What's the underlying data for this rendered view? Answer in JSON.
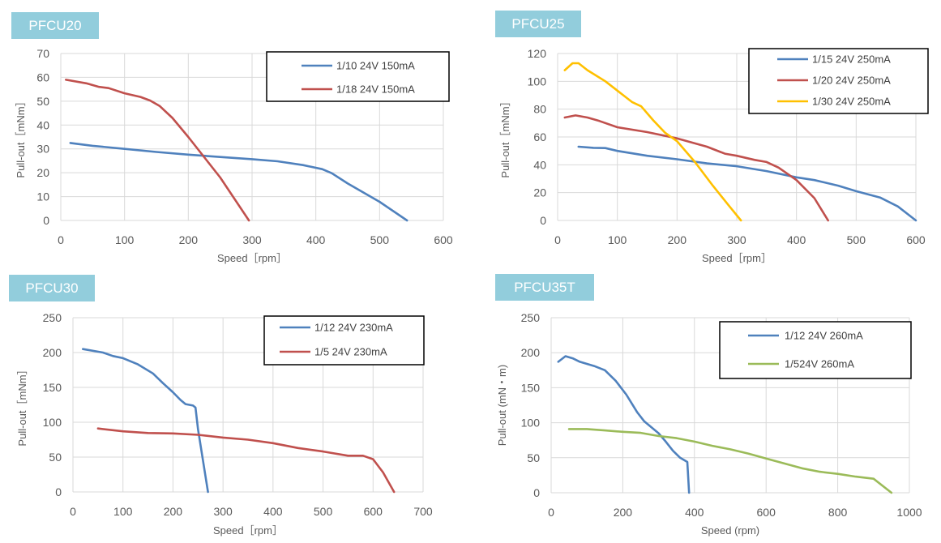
{
  "chart_data": [
    {
      "type": "line",
      "title": "PFCU20",
      "xlabel": "Speed［rpm］",
      "ylabel": "Pull-out［mNm］",
      "xlim": [
        0,
        600
      ],
      "ylim": [
        0,
        70
      ],
      "xticks": [
        0,
        100,
        200,
        300,
        400,
        500,
        600
      ],
      "yticks": [
        0,
        10,
        20,
        30,
        40,
        50,
        60,
        70
      ],
      "grid": true,
      "legend_position": "top-right",
      "series": [
        {
          "name": "1/10 24V 150mA",
          "color": "#4f81bd",
          "points": [
            [
              15,
              32.5
            ],
            [
              50,
              31.3
            ],
            [
              100,
              30
            ],
            [
              150,
              28.7
            ],
            [
              200,
              27.6
            ],
            [
              250,
              26.6
            ],
            [
              300,
              25.7
            ],
            [
              340,
              24.8
            ],
            [
              380,
              23.2
            ],
            [
              410,
              21.5
            ],
            [
              425,
              19.8
            ],
            [
              450,
              15.5
            ],
            [
              500,
              7.8
            ],
            [
              543,
              0
            ]
          ]
        },
        {
          "name": "1/18 24V 150mA",
          "color": "#c0504d",
          "points": [
            [
              8,
              59
            ],
            [
              40,
              57.5
            ],
            [
              60,
              56
            ],
            [
              75,
              55.5
            ],
            [
              100,
              53.3
            ],
            [
              125,
              51.8
            ],
            [
              140,
              50.3
            ],
            [
              155,
              48
            ],
            [
              175,
              43
            ],
            [
              200,
              35
            ],
            [
              250,
              18
            ],
            [
              295,
              0
            ]
          ]
        }
      ]
    },
    {
      "type": "line",
      "title": "PFCU25",
      "xlabel": "Speed［rpm］",
      "ylabel": "Pull-out［mNm］",
      "xlim": [
        0,
        600
      ],
      "ylim": [
        0,
        120
      ],
      "xticks": [
        0,
        100,
        200,
        300,
        400,
        500,
        600
      ],
      "yticks": [
        0,
        20,
        40,
        60,
        80,
        100,
        120
      ],
      "grid": true,
      "legend_position": "top-right",
      "series": [
        {
          "name": "1/15 24V 250mA",
          "color": "#4f81bd",
          "points": [
            [
              35,
              53
            ],
            [
              60,
              52.2
            ],
            [
              80,
              52
            ],
            [
              100,
              50
            ],
            [
              150,
              46.5
            ],
            [
              200,
              44
            ],
            [
              250,
              41
            ],
            [
              300,
              39
            ],
            [
              350,
              35.5
            ],
            [
              400,
              31
            ],
            [
              430,
              29
            ],
            [
              470,
              25
            ],
            [
              500,
              21
            ],
            [
              540,
              16.5
            ],
            [
              570,
              10
            ],
            [
              600,
              0
            ]
          ]
        },
        {
          "name": "1/20 24V 250mA",
          "color": "#c0504d",
          "points": [
            [
              12,
              74
            ],
            [
              30,
              75.5
            ],
            [
              50,
              74
            ],
            [
              70,
              71.5
            ],
            [
              100,
              67
            ],
            [
              150,
              63.5
            ],
            [
              200,
              59
            ],
            [
              250,
              53
            ],
            [
              280,
              48
            ],
            [
              300,
              46.5
            ],
            [
              330,
              43.5
            ],
            [
              350,
              42
            ],
            [
              370,
              38
            ],
            [
              400,
              29
            ],
            [
              430,
              16
            ],
            [
              453,
              0
            ]
          ]
        },
        {
          "name": "1/30 24V 250mA",
          "color": "#ffc000",
          "points": [
            [
              12,
              108
            ],
            [
              25,
              113
            ],
            [
              35,
              113
            ],
            [
              50,
              108
            ],
            [
              80,
              100
            ],
            [
              110,
              90
            ],
            [
              125,
              85
            ],
            [
              140,
              82
            ],
            [
              160,
              72
            ],
            [
              180,
              63
            ],
            [
              200,
              57
            ],
            [
              230,
              42
            ],
            [
              260,
              25
            ],
            [
              290,
              9
            ],
            [
              307,
              0
            ]
          ]
        }
      ]
    },
    {
      "type": "line",
      "title": "PFCU30",
      "xlabel": "Speed［rpm］",
      "ylabel": "Pull-out［mNm］",
      "xlim": [
        0,
        700
      ],
      "ylim": [
        0,
        250
      ],
      "xticks": [
        0,
        100,
        200,
        300,
        400,
        500,
        600,
        700
      ],
      "yticks": [
        0,
        50,
        100,
        150,
        200,
        250
      ],
      "grid": true,
      "legend_position": "top-right",
      "series": [
        {
          "name": "1/12  24V 230mA",
          "color": "#4f81bd",
          "points": [
            [
              20,
              205
            ],
            [
              60,
              200
            ],
            [
              80,
              195
            ],
            [
              100,
              192
            ],
            [
              130,
              183
            ],
            [
              160,
              170
            ],
            [
              180,
              156
            ],
            [
              200,
              143
            ],
            [
              215,
              132
            ],
            [
              225,
              126
            ],
            [
              240,
              124
            ],
            [
              245,
              121
            ],
            [
              250,
              90
            ],
            [
              270,
              0
            ]
          ]
        },
        {
          "name": "1/5 24V 230mA",
          "color": "#c0504d",
          "points": [
            [
              50,
              91
            ],
            [
              100,
              87
            ],
            [
              150,
              84.5
            ],
            [
              200,
              84
            ],
            [
              250,
              82
            ],
            [
              300,
              78
            ],
            [
              350,
              75
            ],
            [
              400,
              70
            ],
            [
              450,
              63
            ],
            [
              500,
              58
            ],
            [
              550,
              52
            ],
            [
              580,
              52
            ],
            [
              600,
              47
            ],
            [
              620,
              28
            ],
            [
              642,
              0
            ]
          ]
        }
      ]
    },
    {
      "type": "line",
      "title": "PFCU35T",
      "xlabel": "Speed (rpm)",
      "ylabel": "Pull-out (mN・m)",
      "xlim": [
        0,
        1000
      ],
      "ylim": [
        0,
        250
      ],
      "xticks": [
        0,
        200,
        400,
        600,
        800,
        1000
      ],
      "yticks": [
        0,
        50,
        100,
        150,
        200,
        250
      ],
      "grid": true,
      "legend_position": "top-right",
      "series": [
        {
          "name": "1/12 24V 260mA",
          "color": "#4f81bd",
          "points": [
            [
              20,
              187
            ],
            [
              40,
              195
            ],
            [
              60,
              192
            ],
            [
              80,
              187
            ],
            [
              120,
              181
            ],
            [
              150,
              175
            ],
            [
              180,
              160
            ],
            [
              210,
              140
            ],
            [
              240,
              115
            ],
            [
              260,
              102
            ],
            [
              300,
              85
            ],
            [
              320,
              73
            ],
            [
              340,
              60
            ],
            [
              360,
              50
            ],
            [
              380,
              44
            ],
            [
              385,
              0
            ]
          ]
        },
        {
          "name": "1/524V 260mA",
          "color": "#9bbb59",
          "points": [
            [
              50,
              91
            ],
            [
              100,
              91
            ],
            [
              150,
              89
            ],
            [
              200,
              87
            ],
            [
              250,
              85.5
            ],
            [
              300,
              81
            ],
            [
              350,
              78
            ],
            [
              400,
              73
            ],
            [
              450,
              67
            ],
            [
              500,
              62
            ],
            [
              550,
              56
            ],
            [
              600,
              49
            ],
            [
              650,
              42
            ],
            [
              700,
              35
            ],
            [
              750,
              30
            ],
            [
              800,
              27
            ],
            [
              850,
              23
            ],
            [
              900,
              20
            ],
            [
              950,
              0
            ]
          ]
        }
      ]
    }
  ]
}
